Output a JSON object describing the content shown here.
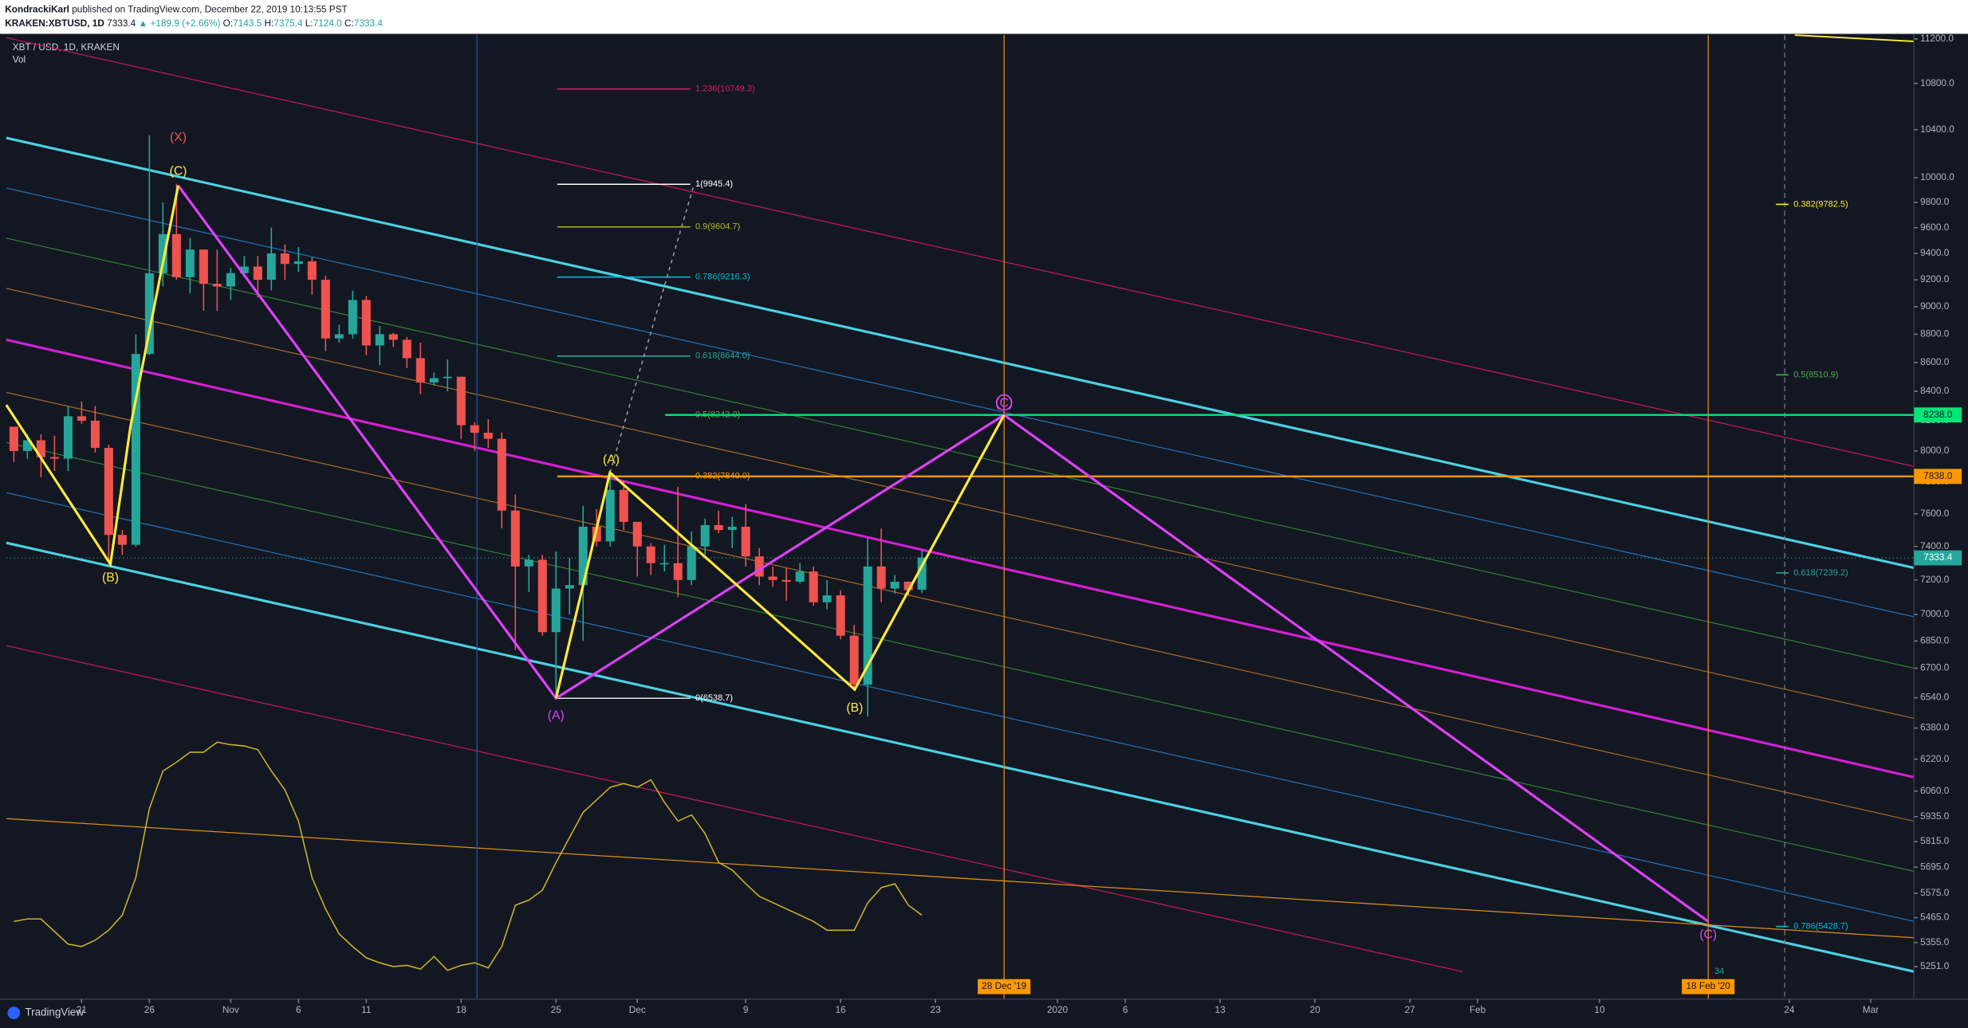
{
  "header": {
    "author": "KondrackiKarl",
    "published": "published on TradingView.com, December 22, 2019 10:13:55 PST",
    "symbol": "KRAKEN:XBTUSD, 1D",
    "price": "7333.4",
    "change": "▲ +189.9 (+2.66%)",
    "ohlc": [
      {
        "label": "O:",
        "value": "7143.5"
      },
      {
        "label": "H:",
        "value": "7375.4"
      },
      {
        "label": "L:",
        "value": "7124.0"
      },
      {
        "label": "C:",
        "value": "7333.4"
      }
    ]
  },
  "chart_data": {
    "type": "candlestick",
    "title": "XBT / USD, 1D, KRAKEN",
    "indicator": "Vol",
    "x": [
      15,
      16,
      17,
      18,
      19,
      20,
      21,
      22,
      23,
      24,
      25,
      26,
      27,
      28,
      29,
      30,
      31,
      32,
      33,
      34,
      35,
      36,
      37,
      38,
      39,
      40,
      41,
      42,
      43,
      44,
      45,
      46,
      47,
      48,
      49,
      50,
      51,
      52,
      53,
      54,
      55,
      56,
      57,
      58,
      59,
      60,
      61,
      62,
      63,
      64,
      65,
      66,
      67,
      68,
      69,
      70,
      71,
      72,
      73,
      74,
      75,
      76,
      77,
      78,
      79,
      80,
      81,
      82
    ],
    "open": [
      8160,
      8000,
      8070,
      7960,
      7950,
      8230,
      8200,
      8020,
      7470,
      7410,
      8660,
      9250,
      9550,
      9220,
      9430,
      9170,
      9150,
      9250,
      9300,
      9200,
      9400,
      9320,
      9340,
      9200,
      8770,
      8800,
      9050,
      8720,
      8800,
      8760,
      8630,
      8460,
      8490,
      8500,
      8170,
      8120,
      8080,
      7620,
      7280,
      7320,
      6900,
      7150,
      7170,
      7520,
      7430,
      7750,
      7550,
      7400,
      7300,
      7300,
      7200,
      7400,
      7530,
      7500,
      7520,
      7340,
      7220,
      7200,
      7190,
      7250,
      7070,
      7110,
      6880,
      6610,
      7280,
      7150,
      7190,
      7143.5
    ],
    "high": [
      8160,
      8110,
      8110,
      8100,
      8300,
      8330,
      8300,
      8040,
      7500,
      8800,
      10350,
      9800,
      9950,
      9520,
      9430,
      9430,
      9290,
      9380,
      9380,
      9600,
      9470,
      9450,
      9370,
      9230,
      8870,
      9120,
      9080,
      8860,
      8810,
      8780,
      8740,
      8530,
      8620,
      8500,
      8190,
      8210,
      8120,
      7720,
      7350,
      7350,
      7370,
      7330,
      7650,
      7630,
      7870,
      7810,
      7550,
      7420,
      7410,
      7770,
      7490,
      7570,
      7620,
      7580,
      7660,
      7390,
      7280,
      7270,
      7300,
      7280,
      7200,
      7140,
      6940,
      7450,
      7510,
      7230,
      7190,
      7375.4
    ],
    "low": [
      7930,
      7950,
      7830,
      7870,
      7870,
      8180,
      7990,
      7300,
      7350,
      7400,
      8650,
      9150,
      9200,
      9100,
      8970,
      8970,
      9050,
      9220,
      9070,
      9120,
      9200,
      9260,
      9090,
      8680,
      8740,
      8770,
      8650,
      8580,
      8710,
      8560,
      8380,
      8440,
      8400,
      8080,
      8000,
      8020,
      7510,
      6800,
      7130,
      6880,
      6550,
      7000,
      6850,
      7400,
      7400,
      7500,
      7220,
      7230,
      7250,
      7100,
      7170,
      7350,
      7480,
      7390,
      7280,
      7170,
      7160,
      7080,
      7180,
      7050,
      7030,
      6860,
      6580,
      6440,
      7070,
      7120,
      7110,
      7124.0
    ],
    "close": [
      8000,
      8070,
      7960,
      7950,
      8230,
      8200,
      8020,
      7470,
      7410,
      8660,
      9250,
      9550,
      9220,
      9430,
      9170,
      9150,
      9250,
      9300,
      9200,
      9400,
      9320,
      9340,
      9200,
      8770,
      8800,
      9050,
      8720,
      8800,
      8760,
      8630,
      8460,
      8490,
      8500,
      8170,
      8120,
      8080,
      7620,
      7280,
      7320,
      6900,
      7150,
      7170,
      7520,
      7430,
      7750,
      7550,
      7400,
      7300,
      7300,
      7200,
      7400,
      7530,
      7500,
      7520,
      7340,
      7220,
      7200,
      7190,
      7250,
      7070,
      7110,
      6880,
      6610,
      7280,
      7150,
      7190,
      7140,
      7333.4
    ],
    "volume": [
      45,
      47,
      47,
      37,
      27,
      25,
      30,
      38,
      50,
      80,
      135,
      165,
      172,
      180,
      180,
      188,
      186,
      185,
      182,
      165,
      150,
      125,
      80,
      55,
      35,
      25,
      16,
      12,
      9,
      10,
      7,
      17,
      6,
      10,
      12,
      8,
      25,
      58,
      62,
      70,
      92,
      112,
      132,
      142,
      152,
      155,
      152,
      158,
      140,
      125,
      130,
      115,
      92,
      86,
      75,
      65,
      60,
      55,
      50,
      45,
      38,
      38,
      38,
      60,
      72,
      75,
      58,
      50
    ],
    "up_color": "#26a69a",
    "down_color": "#ef5350",
    "volume_color": "#c9b22a",
    "log_scale": true,
    "ylim": [
      5113,
      11235
    ],
    "yticks": [
      {
        "value": 11200,
        "label": "11200.0"
      },
      {
        "value": 10800,
        "label": "10800.0"
      },
      {
        "value": 10400,
        "label": "10400.0"
      },
      {
        "value": 10000,
        "label": "10000.0"
      },
      {
        "value": 9800,
        "label": "9800.0"
      },
      {
        "value": 9600,
        "label": "9600.0"
      },
      {
        "value": 9400,
        "label": "9400.0"
      },
      {
        "value": 9200,
        "label": "9200.0"
      },
      {
        "value": 9000,
        "label": "9000.0"
      },
      {
        "value": 8800,
        "label": "8800.0"
      },
      {
        "value": 8600,
        "label": "8600.0"
      },
      {
        "value": 8400,
        "label": "8400.0"
      },
      {
        "value": 8200,
        "label": "8200.0"
      },
      {
        "value": 8000,
        "label": "8000.0"
      },
      {
        "value": 7800,
        "label": "7800.0"
      },
      {
        "value": 7600,
        "label": "7600.0"
      },
      {
        "value": 7400,
        "label": "7400.0"
      },
      {
        "value": 7200,
        "label": "7200.0"
      },
      {
        "value": 7000,
        "label": "7000.0"
      },
      {
        "value": 6850,
        "label": "6850.0"
      },
      {
        "value": 6700,
        "label": "6700.0"
      },
      {
        "value": 6540,
        "label": "6540.0"
      },
      {
        "value": 6380,
        "label": "6380.0"
      },
      {
        "value": 6220,
        "label": "6220.0"
      },
      {
        "value": 6060,
        "label": "6060.0"
      },
      {
        "value": 5935,
        "label": "5935.0"
      },
      {
        "value": 5815,
        "label": "5815.0"
      },
      {
        "value": 5695,
        "label": "5695.0"
      },
      {
        "value": 5575,
        "label": "5575.0"
      },
      {
        "value": 5465,
        "label": "5465.0"
      },
      {
        "value": 5355,
        "label": "5355.0"
      },
      {
        "value": 5251,
        "label": "5251.0"
      }
    ],
    "xlim": [
      14.44,
      155.2
    ],
    "xticks": [
      {
        "value": 20,
        "label": "21"
      },
      {
        "value": 25,
        "label": "26"
      },
      {
        "value": 31,
        "label": "Nov"
      },
      {
        "value": 36,
        "label": "6"
      },
      {
        "value": 41,
        "label": "11"
      },
      {
        "value": 48,
        "label": "18"
      },
      {
        "value": 55,
        "label": "25"
      },
      {
        "value": 61,
        "label": "Dec"
      },
      {
        "value": 69,
        "label": "9"
      },
      {
        "value": 76,
        "label": "16"
      },
      {
        "value": 83,
        "label": "23"
      },
      {
        "value": 92,
        "label": "2020"
      },
      {
        "value": 97,
        "label": "6"
      },
      {
        "value": 104,
        "label": "13"
      },
      {
        "value": 111,
        "label": "20"
      },
      {
        "value": 118,
        "label": "27"
      },
      {
        "value": 123,
        "label": "Feb"
      },
      {
        "value": 132,
        "label": "10"
      },
      {
        "value": 146,
        "label": "24"
      },
      {
        "value": 152,
        "label": "Mar"
      }
    ]
  },
  "annotations": {
    "fib_left": [
      "1.236(10749.3)",
      "1(9945.4)",
      "0.9(9604.7)",
      "0.786(9216.3)",
      "0.618(8644.0)",
      "0.5(8242.0)",
      "0.382(7840.0)",
      "0(6538.7)"
    ],
    "fib_right": [
      "0.382(9782.5)",
      "0.5(8510.9)",
      "0.618(7239.2)",
      "0.786(5428.7)"
    ],
    "waves": [
      "(X)",
      "(C)",
      "(B)",
      "(A)",
      "(A)",
      "(B)",
      "(C)",
      "(C)"
    ],
    "price_tags": [
      "8238.0",
      "7838.0",
      "7333.4"
    ],
    "date_tags": [
      "28 Dec '19",
      "18 Feb '20"
    ],
    "count_label": "34"
  },
  "footer": {
    "logo": "TradingView"
  }
}
